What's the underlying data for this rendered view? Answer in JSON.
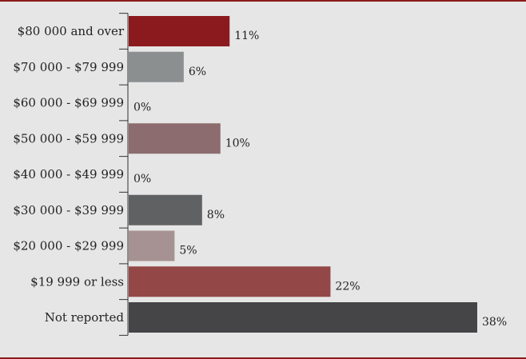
{
  "chart_data": {
    "type": "bar",
    "orientation": "horizontal",
    "categories": [
      "$80 000 and over",
      "$70 000 - $79 999",
      "$60 000 - $69 999",
      "$50 000 - $59 999",
      "$40 000 - $49 999",
      "$30 000 - $39 999",
      "$20 000 - $29 999",
      "$19 999 or less",
      "Not reported"
    ],
    "values": [
      11,
      6,
      0,
      10,
      0,
      8,
      5,
      22,
      38
    ],
    "value_labels": [
      "11%",
      "6%",
      "0%",
      "10%",
      "0%",
      "8%",
      "5%",
      "22%",
      "38%"
    ],
    "bar_colors": [
      "#8b1a1f",
      "#8c8f90",
      "#a0a0a0",
      "#8c6c6e",
      "#a0a0a0",
      "#606162",
      "#a69292",
      "#944747",
      "#454547"
    ],
    "xlim": [
      0,
      38
    ],
    "title": "",
    "xlabel": "",
    "ylabel": "",
    "grid": false,
    "legend": "none"
  },
  "colors": {
    "background": "#e6e6e6",
    "frame_rule": "#8b1a1a",
    "axis": "#333333",
    "text": "#222222"
  }
}
